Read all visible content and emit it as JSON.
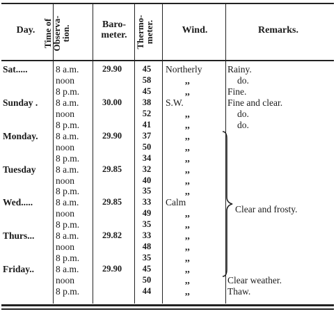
{
  "headers": {
    "day": "Day.",
    "time": [
      "Time of",
      "Observa-",
      "tion."
    ],
    "barometer": [
      "Baro-",
      "meter."
    ],
    "thermometer": [
      "Thermo-",
      "meter."
    ],
    "wind": "Wind.",
    "remarks": "Remarks."
  },
  "rows": [
    {
      "day": "Sat.....",
      "time": "8 a.m.",
      "barometer": "29.90",
      "thermometer": "45",
      "wind": "Northerly",
      "remarks": "Rainy."
    },
    {
      "day": "",
      "time": "noon",
      "barometer": "",
      "thermometer": "58",
      "wind": ",,",
      "remarks": "do."
    },
    {
      "day": "",
      "time": "8 p.m.",
      "barometer": "",
      "thermometer": "45",
      "wind": ",,",
      "remarks": "Fine."
    },
    {
      "day": "Sunday .",
      "time": "8 a.m.",
      "barometer": "30.00",
      "thermometer": "38",
      "wind": "S.W.",
      "remarks": "Fine and clear."
    },
    {
      "day": "",
      "time": "noon",
      "barometer": "",
      "thermometer": "52",
      "wind": ",,",
      "remarks": "do."
    },
    {
      "day": "",
      "time": "8 p.m.",
      "barometer": "",
      "thermometer": "41",
      "wind": ",,",
      "remarks": "do."
    },
    {
      "day": "Monday.",
      "time": "8 a.m.",
      "barometer": "29.90",
      "thermometer": "37",
      "wind": ",,",
      "remarks": ""
    },
    {
      "day": "",
      "time": "noon",
      "barometer": "",
      "thermometer": "50",
      "wind": ",,",
      "remarks": ""
    },
    {
      "day": "",
      "time": "8 p.m.",
      "barometer": "",
      "thermometer": "34",
      "wind": ",,",
      "remarks": ""
    },
    {
      "day": "Tuesday",
      "time": "8 a.m.",
      "barometer": "29.85",
      "thermometer": "32",
      "wind": ",,",
      "remarks": ""
    },
    {
      "day": "",
      "time": "noon",
      "barometer": "",
      "thermometer": "40",
      "wind": ",,",
      "remarks": ""
    },
    {
      "day": "",
      "time": "8 p.m.",
      "barometer": "",
      "thermometer": "35",
      "wind": ",,",
      "remarks": ""
    },
    {
      "day": "Wed.....",
      "time": "8 a.m.",
      "barometer": "29.85",
      "thermometer": "33",
      "wind": "Calm",
      "remarks": ""
    },
    {
      "day": "",
      "time": "noon",
      "barometer": "",
      "thermometer": "49",
      "wind": ",,",
      "remarks": ""
    },
    {
      "day": "",
      "time": "8 p.m.",
      "barometer": "",
      "thermometer": "35",
      "wind": ",,",
      "remarks": ""
    },
    {
      "day": "Thurs...",
      "time": "8 a.m.",
      "barometer": "29.82",
      "thermometer": "33",
      "wind": ",,",
      "remarks": ""
    },
    {
      "day": "",
      "time": "noon",
      "barometer": "",
      "thermometer": "48",
      "wind": ",,",
      "remarks": ""
    },
    {
      "day": "",
      "time": "8 p.m.",
      "barometer": "",
      "thermometer": "35",
      "wind": ",,",
      "remarks": ""
    },
    {
      "day": "Friday..",
      "time": "8 a.m.",
      "barometer": "29.90",
      "thermometer": "45",
      "wind": ",,",
      "remarks": ""
    },
    {
      "day": "",
      "time": "noon",
      "barometer": "",
      "thermometer": "50",
      "wind": ",,",
      "remarks": "Clear weather."
    },
    {
      "day": "",
      "time": "8 p.m.",
      "barometer": "",
      "thermometer": "44",
      "wind": ",,",
      "remarks": "Thaw."
    }
  ],
  "brace_remark": "Clear and frosty."
}
